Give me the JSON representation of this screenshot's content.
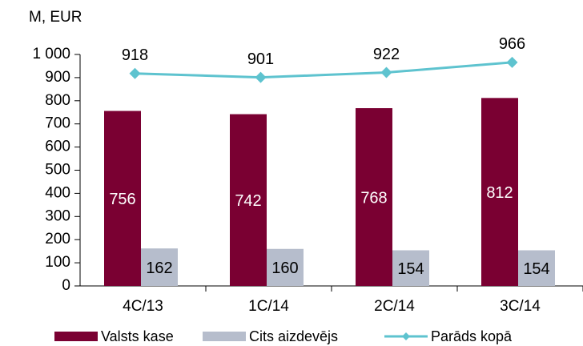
{
  "chart_data": {
    "type": "bar",
    "y_label": "M, EUR",
    "categories": [
      "4C/13",
      "1C/14",
      "2C/14",
      "3C/14"
    ],
    "series": [
      {
        "name": "Valsts kase",
        "color": "#7a0032",
        "values": [
          756,
          742,
          768,
          812
        ]
      },
      {
        "name": "Cits aizdevējs",
        "color": "#b6bdcc",
        "values": [
          162,
          160,
          154,
          154
        ]
      },
      {
        "name": "Parāds kopā",
        "color": "#5ec3cf",
        "type": "line",
        "values": [
          918,
          901,
          922,
          966
        ]
      }
    ],
    "ylim": [
      0,
      1000
    ],
    "yticks": [
      0,
      100,
      200,
      300,
      400,
      500,
      600,
      700,
      800,
      900,
      {
        "value": 1000,
        "label": "1 000"
      }
    ],
    "grid": false,
    "legend": "bottom"
  }
}
